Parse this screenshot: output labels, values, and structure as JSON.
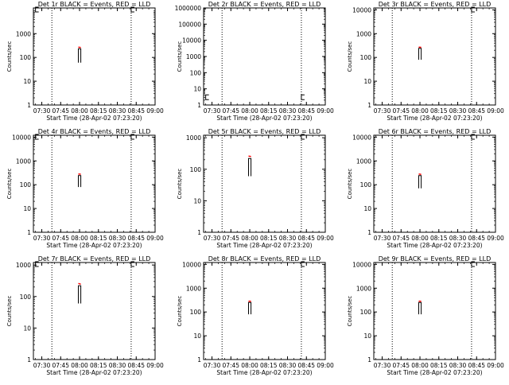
{
  "chart_data": [
    {
      "type": "line",
      "title": "Det 1r BLACK = Events, RED = LLD",
      "xlabel": "Start Time (28-Apr-02 07:23:20)",
      "ylabel": "Counts/sec",
      "y_scale": "log",
      "ylim": [
        1,
        12000
      ],
      "y_tick_labels": [
        "1",
        "10",
        "100",
        "1000"
      ],
      "x_tick_labels": [
        "07:30",
        "07:45",
        "08:00",
        "08:15",
        "08:30",
        "08:45",
        "09:00"
      ],
      "xlim": [
        "07:23:20",
        "09:00"
      ],
      "vlines": [
        "07:38",
        "08:41"
      ],
      "series": [
        {
          "color": "#000000",
          "x": [
            "07:59",
            "07:59",
            "08:01",
            "08:01"
          ],
          "y": [
            60,
            230,
            230,
            60
          ]
        },
        {
          "color": "#ff0000",
          "x": [
            "07:59",
            "08:01"
          ],
          "y": [
            270,
            260
          ]
        }
      ],
      "flag_markers": [
        {
          "x": "07:25",
          "y": 11000
        },
        {
          "x": "08:41",
          "y": 11000
        }
      ]
    },
    {
      "type": "line",
      "title": "Det 2r BLACK = Events, RED = LLD",
      "xlabel": "Start Time (28-Apr-02 07:23:20)",
      "ylabel": "Counts/sec",
      "y_scale": "log",
      "ylim": [
        1,
        1000000
      ],
      "y_tick_labels": [
        "1",
        "10",
        "100",
        "1000",
        "10000",
        "100000",
        "1000000"
      ],
      "x_tick_labels": [
        "07:30",
        "07:45",
        "08:00",
        "08:15",
        "08:30",
        "08:45",
        "09:00"
      ],
      "xlim": [
        "07:23:20",
        "09:00"
      ],
      "vlines": [
        "07:38",
        "08:41"
      ],
      "series": [],
      "flag_markers": [
        {
          "x": "07:25",
          "y": 3
        },
        {
          "x": "08:41",
          "y": 3
        }
      ]
    },
    {
      "type": "line",
      "title": "Det 3r BLACK = Events, RED = LLD",
      "xlabel": "Start Time (28-Apr-02 07:23:20)",
      "ylabel": "Counts/sec",
      "y_scale": "log",
      "ylim": [
        1,
        12000
      ],
      "y_tick_labels": [
        "1",
        "10",
        "100",
        "1000",
        "10000"
      ],
      "x_tick_labels": [
        "07:30",
        "07:45",
        "08:00",
        "08:15",
        "08:30",
        "08:45",
        "09:00"
      ],
      "xlim": [
        "07:23:20",
        "09:00"
      ],
      "vlines": [
        "07:38",
        "08:41"
      ],
      "series": [
        {
          "color": "#000000",
          "x": [
            "07:59",
            "07:59",
            "08:01",
            "08:01"
          ],
          "y": [
            80,
            240,
            240,
            80
          ]
        },
        {
          "color": "#ff0000",
          "x": [
            "07:59",
            "08:01"
          ],
          "y": [
            270,
            265
          ]
        }
      ],
      "flag_markers": [
        {
          "x": "08:41",
          "y": 11000
        }
      ]
    },
    {
      "type": "line",
      "title": "Det 4r BLACK = Events, RED = LLD",
      "xlabel": "Start Time (28-Apr-02 07:23:20)",
      "ylabel": "Counts/sec",
      "y_scale": "log",
      "ylim": [
        1,
        12000
      ],
      "y_tick_labels": [
        "1",
        "10",
        "100",
        "1000",
        "10000"
      ],
      "x_tick_labels": [
        "07:30",
        "07:45",
        "08:00",
        "08:15",
        "08:30",
        "08:45",
        "09:00"
      ],
      "xlim": [
        "07:23:20",
        "09:00"
      ],
      "vlines": [
        "07:38",
        "08:41"
      ],
      "series": [
        {
          "color": "#000000",
          "x": [
            "07:59",
            "07:59",
            "08:01",
            "08:01"
          ],
          "y": [
            80,
            240,
            240,
            80
          ]
        },
        {
          "color": "#ff0000",
          "x": [
            "07:59",
            "08:01"
          ],
          "y": [
            280,
            275
          ]
        }
      ],
      "flag_markers": [
        {
          "x": "07:25",
          "y": 11000
        },
        {
          "x": "08:41",
          "y": 11000
        }
      ]
    },
    {
      "type": "line",
      "title": "Det 5r BLACK = Events, RED = LLD",
      "xlabel": "Start Time (28-Apr-02 07:23:20)",
      "ylabel": "Counts/sec",
      "y_scale": "log",
      "ylim": [
        1,
        1200
      ],
      "y_tick_labels": [
        "1",
        "10",
        "100",
        "1000"
      ],
      "x_tick_labels": [
        "07:30",
        "07:45",
        "08:00",
        "08:15",
        "08:30",
        "08:45",
        "09:00"
      ],
      "xlim": [
        "07:23:20",
        "09:00"
      ],
      "vlines": [
        "07:38",
        "08:41"
      ],
      "series": [
        {
          "color": "#000000",
          "x": [
            "07:59",
            "07:59",
            "08:01",
            "08:01"
          ],
          "y": [
            60,
            220,
            220,
            60
          ]
        },
        {
          "color": "#ff0000",
          "x": [
            "07:59",
            "08:01"
          ],
          "y": [
            260,
            255
          ]
        }
      ],
      "flag_markers": [
        {
          "x": "08:41",
          "y": 1100
        }
      ]
    },
    {
      "type": "line",
      "title": "Det 6r BLACK = Events, RED = LLD",
      "xlabel": "Start Time (28-Apr-02 07:23:20)",
      "ylabel": "Counts/sec",
      "y_scale": "log",
      "ylim": [
        1,
        12000
      ],
      "y_tick_labels": [
        "1",
        "10",
        "100",
        "1000",
        "10000"
      ],
      "x_tick_labels": [
        "07:30",
        "07:45",
        "08:00",
        "08:15",
        "08:30",
        "08:45",
        "09:00"
      ],
      "xlim": [
        "07:23:20",
        "09:00"
      ],
      "vlines": [
        "07:38",
        "08:41"
      ],
      "series": [
        {
          "color": "#000000",
          "x": [
            "07:59",
            "07:59",
            "08:01",
            "08:01"
          ],
          "y": [
            70,
            240,
            240,
            70
          ]
        },
        {
          "color": "#ff0000",
          "x": [
            "07:59",
            "08:01"
          ],
          "y": [
            280,
            270
          ]
        }
      ],
      "flag_markers": [
        {
          "x": "08:41",
          "y": 11000
        }
      ]
    },
    {
      "type": "line",
      "title": "Det 7r BLACK = Events, RED = LLD",
      "xlabel": "Start Time (28-Apr-02 07:23:20)",
      "ylabel": "Counts/sec",
      "y_scale": "log",
      "ylim": [
        1,
        1200
      ],
      "y_tick_labels": [
        "1",
        "10",
        "100",
        "1000"
      ],
      "x_tick_labels": [
        "07:30",
        "07:45",
        "08:00",
        "08:15",
        "08:30",
        "08:45",
        "09:00"
      ],
      "xlim": [
        "07:23:20",
        "09:00"
      ],
      "vlines": [
        "07:38",
        "08:41"
      ],
      "series": [
        {
          "color": "#000000",
          "x": [
            "07:59",
            "07:59",
            "08:01",
            "08:01"
          ],
          "y": [
            60,
            220,
            220,
            60
          ]
        },
        {
          "color": "#ff0000",
          "x": [
            "07:59",
            "08:01"
          ],
          "y": [
            260,
            245
          ]
        }
      ],
      "flag_markers": [
        {
          "x": "07:25",
          "y": 1100
        },
        {
          "x": "08:41",
          "y": 1100
        }
      ]
    },
    {
      "type": "line",
      "title": "Det 8r BLACK = Events, RED = LLD",
      "xlabel": "Start Time (28-Apr-02 07:23:20)",
      "ylabel": "Counts/sec",
      "y_scale": "log",
      "ylim": [
        1,
        12000
      ],
      "y_tick_labels": [
        "1",
        "10",
        "100",
        "1000",
        "10000"
      ],
      "x_tick_labels": [
        "07:30",
        "07:45",
        "08:00",
        "08:15",
        "08:30",
        "08:45",
        "09:00"
      ],
      "xlim": [
        "07:23:20",
        "09:00"
      ],
      "vlines": [
        "07:38",
        "08:41"
      ],
      "series": [
        {
          "color": "#000000",
          "x": [
            "07:59",
            "07:59",
            "08:01",
            "08:01"
          ],
          "y": [
            80,
            250,
            250,
            80
          ]
        },
        {
          "color": "#ff0000",
          "x": [
            "07:59",
            "08:01"
          ],
          "y": [
            285,
            280
          ]
        }
      ],
      "flag_markers": [
        {
          "x": "08:41",
          "y": 11000
        }
      ]
    },
    {
      "type": "line",
      "title": "Det 9r BLACK = Events, RED = LLD",
      "xlabel": "Start Time (28-Apr-02 07:23:20)",
      "ylabel": "Counts/sec",
      "y_scale": "log",
      "ylim": [
        1,
        12000
      ],
      "y_tick_labels": [
        "1",
        "10",
        "100",
        "1000",
        "10000"
      ],
      "x_tick_labels": [
        "07:30",
        "07:45",
        "08:00",
        "08:15",
        "08:30",
        "08:45",
        "09:00"
      ],
      "xlim": [
        "07:23:20",
        "09:00"
      ],
      "vlines": [
        "07:38",
        "08:41"
      ],
      "series": [
        {
          "color": "#000000",
          "x": [
            "07:59",
            "07:59",
            "08:01",
            "08:01"
          ],
          "y": [
            80,
            250,
            250,
            80
          ]
        },
        {
          "color": "#ff0000",
          "x": [
            "07:59",
            "08:01"
          ],
          "y": [
            285,
            280
          ]
        }
      ],
      "flag_markers": [
        {
          "x": "08:41",
          "y": 11000
        }
      ]
    }
  ]
}
